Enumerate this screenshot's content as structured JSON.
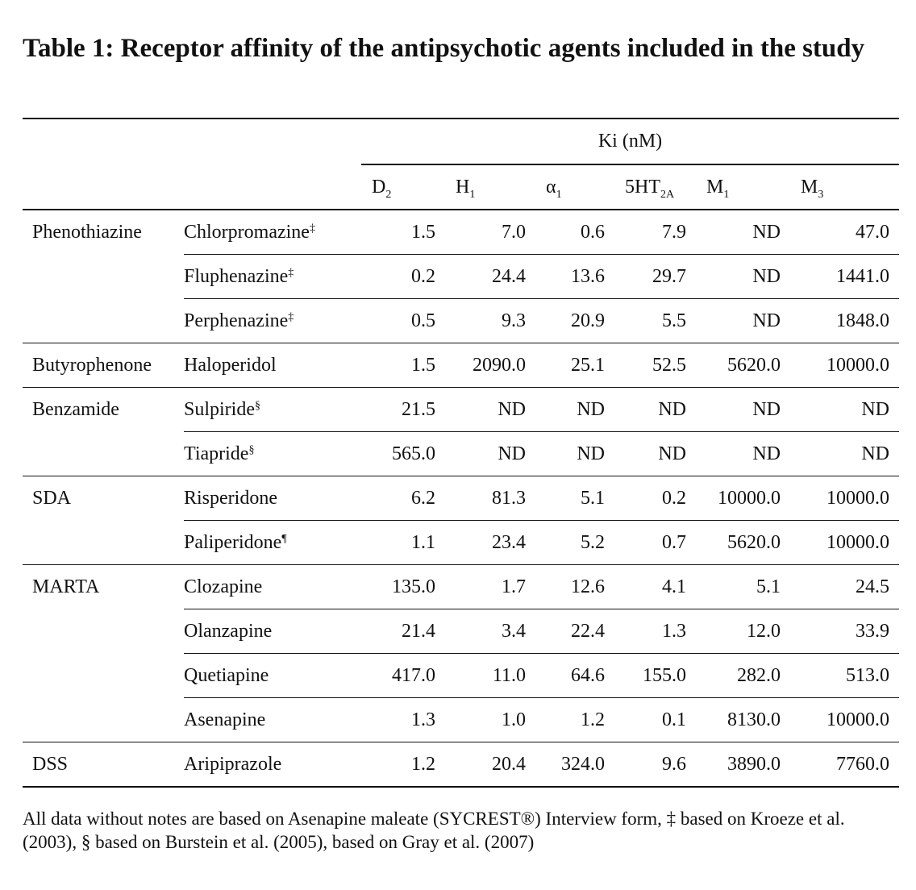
{
  "title": "Table 1: Receptor affinity of the antipsychotic agents included in the study",
  "header": {
    "group_label": "Ki (nM)",
    "columns": [
      {
        "main": "D",
        "sub": "2"
      },
      {
        "main": "H",
        "sub": "1"
      },
      {
        "main": "α",
        "sub": "1"
      },
      {
        "main": "5HT",
        "sub": "2A"
      },
      {
        "main": "M",
        "sub": "1"
      },
      {
        "main": "M",
        "sub": "3"
      }
    ]
  },
  "rows": [
    {
      "class": "Phenothiazine",
      "drug": "Chlorpromazine",
      "mark": "‡",
      "values": [
        "1.5",
        "7.0",
        "0.6",
        "7.9",
        "ND",
        "47.0"
      ]
    },
    {
      "class": "",
      "drug": "Fluphenazine",
      "mark": "‡",
      "values": [
        "0.2",
        "24.4",
        "13.6",
        "29.7",
        "ND",
        "1441.0"
      ]
    },
    {
      "class": "",
      "drug": "Perphenazine",
      "mark": "‡",
      "values": [
        "0.5",
        "9.3",
        "20.9",
        "5.5",
        "ND",
        "1848.0"
      ]
    },
    {
      "class": "Butyrophenone",
      "drug": "Haloperidol",
      "mark": "",
      "values": [
        "1.5",
        "2090.0",
        "25.1",
        "52.5",
        "5620.0",
        "10000.0"
      ]
    },
    {
      "class": "Benzamide",
      "drug": "Sulpiride",
      "mark": "§",
      "values": [
        "21.5",
        "ND",
        "ND",
        "ND",
        "ND",
        "ND"
      ]
    },
    {
      "class": "",
      "drug": "Tiapride",
      "mark": "§",
      "values": [
        "565.0",
        "ND",
        "ND",
        "ND",
        "ND",
        "ND"
      ]
    },
    {
      "class": "SDA",
      "drug": "Risperidone",
      "mark": "",
      "values": [
        "6.2",
        "81.3",
        "5.1",
        "0.2",
        "10000.0",
        "10000.0"
      ]
    },
    {
      "class": "",
      "drug": "Paliperidone",
      "mark": "¶",
      "values": [
        "1.1",
        "23.4",
        "5.2",
        "0.7",
        "5620.0",
        "10000.0"
      ]
    },
    {
      "class": "MARTA",
      "drug": "Clozapine",
      "mark": "",
      "values": [
        "135.0",
        "1.7",
        "12.6",
        "4.1",
        "5.1",
        "24.5"
      ]
    },
    {
      "class": "",
      "drug": "Olanzapine",
      "mark": "",
      "values": [
        "21.4",
        "3.4",
        "22.4",
        "1.3",
        "12.0",
        "33.9"
      ]
    },
    {
      "class": "",
      "drug": "Quetiapine",
      "mark": "",
      "values": [
        "417.0",
        "11.0",
        "64.6",
        "155.0",
        "282.0",
        "513.0"
      ]
    },
    {
      "class": "",
      "drug": "Asenapine",
      "mark": "",
      "values": [
        "1.3",
        "1.0",
        "1.2",
        "0.1",
        "8130.0",
        "10000.0"
      ]
    },
    {
      "class": "DSS",
      "drug": "Aripiprazole",
      "mark": "",
      "values": [
        "1.2",
        "20.4",
        "324.0",
        "9.6",
        "3890.0",
        "7760.0"
      ]
    }
  ],
  "footnote": "All data without notes are based on Asenapine maleate (SYCREST®) Interview form, ‡ based on Kroeze et al. (2003), § based on Burstein et al. (2005), based on Gray et al. (2007)"
}
